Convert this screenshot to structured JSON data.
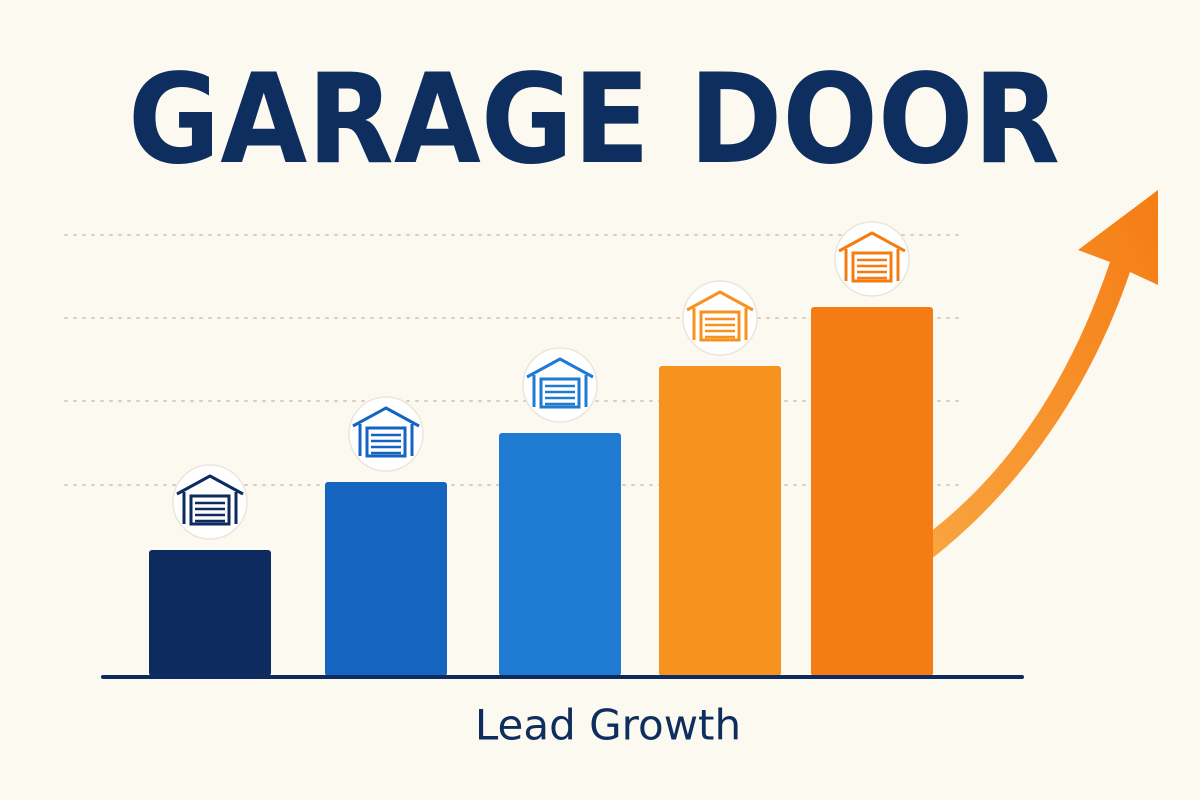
{
  "chart_data": {
    "type": "bar",
    "title": "GARAGE DOOR",
    "x_label": "Lead Growth",
    "categories": [
      null,
      null,
      null,
      null,
      null
    ],
    "values": [
      126,
      194,
      243,
      310,
      369
    ],
    "colors": [
      "#0d2b5e",
      "#1565c0",
      "#1f7ad1",
      "#f7921e",
      "#f57c13"
    ],
    "ylim": [
      0,
      450
    ],
    "grid_values": [
      191,
      275,
      358,
      441
    ],
    "grid": true
  }
}
